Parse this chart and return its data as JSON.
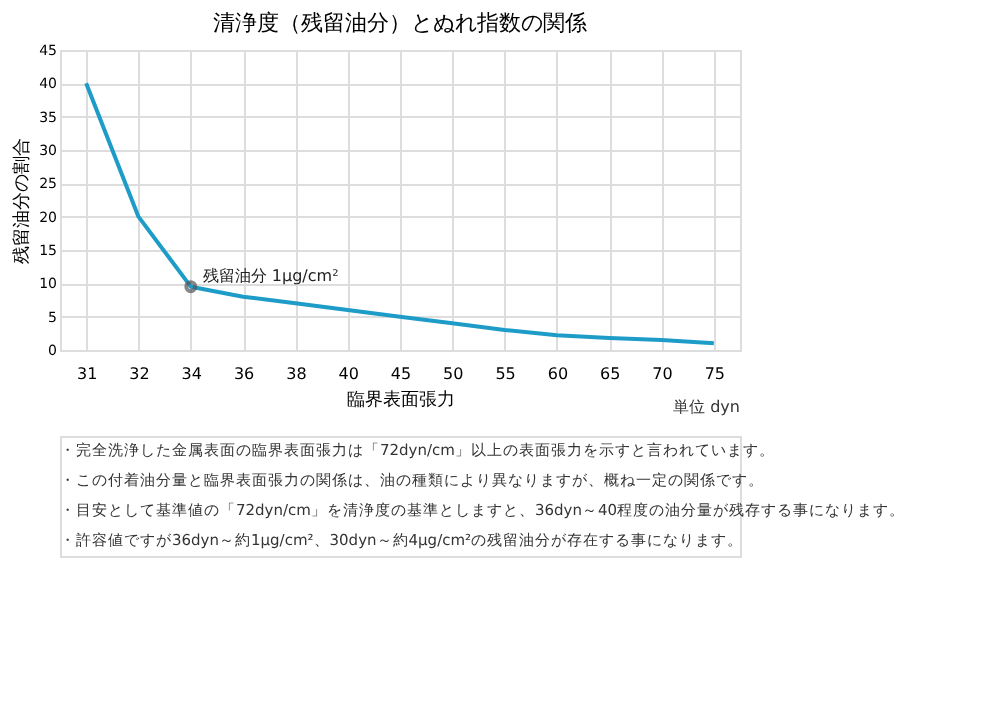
{
  "chart_data": {
    "type": "line",
    "title": "清浄度（残留油分）とぬれ指数の関係",
    "xlabel": "臨界表面張力",
    "ylabel": "残留油分の割合",
    "categories": [
      "31",
      "32",
      "34",
      "36",
      "38",
      "40",
      "45",
      "50",
      "55",
      "60",
      "65",
      "70",
      "75"
    ],
    "series": [
      {
        "color": "#1e9cc8",
        "values": [
          40,
          20,
          9.5,
          8,
          7,
          6,
          5,
          4,
          3,
          2.2,
          1.8,
          1.5,
          1
        ]
      }
    ],
    "ylim": [
      0,
      45
    ],
    "yticks": [
      0,
      5,
      10,
      15,
      20,
      25,
      30,
      35,
      40,
      45
    ],
    "grid": true,
    "marker": "none",
    "line_style": "solid",
    "annotations": [
      {
        "text": "残留油分 1μg/cm²",
        "x": "34",
        "y": 9.5
      },
      "単位 dyn",
      "・完全洗浄した金属表面の臨界表面張力は「72dyn/cm」以上の表面張力を示すと言われています。",
      "・この付着油分量と臨界表面張力の関係は、油の種類により異なりますが、概ね一定の関係です。",
      "・目安として基準値の「72dyn/cm」を清浄度の基準としますと、36dyn～40程度の油分量が残存する事になります。",
      "・許容値ですが36dyn～約1μg/cm²、30dyn～約4μg/cm²の残留油分が存在する事になります。"
    ]
  }
}
